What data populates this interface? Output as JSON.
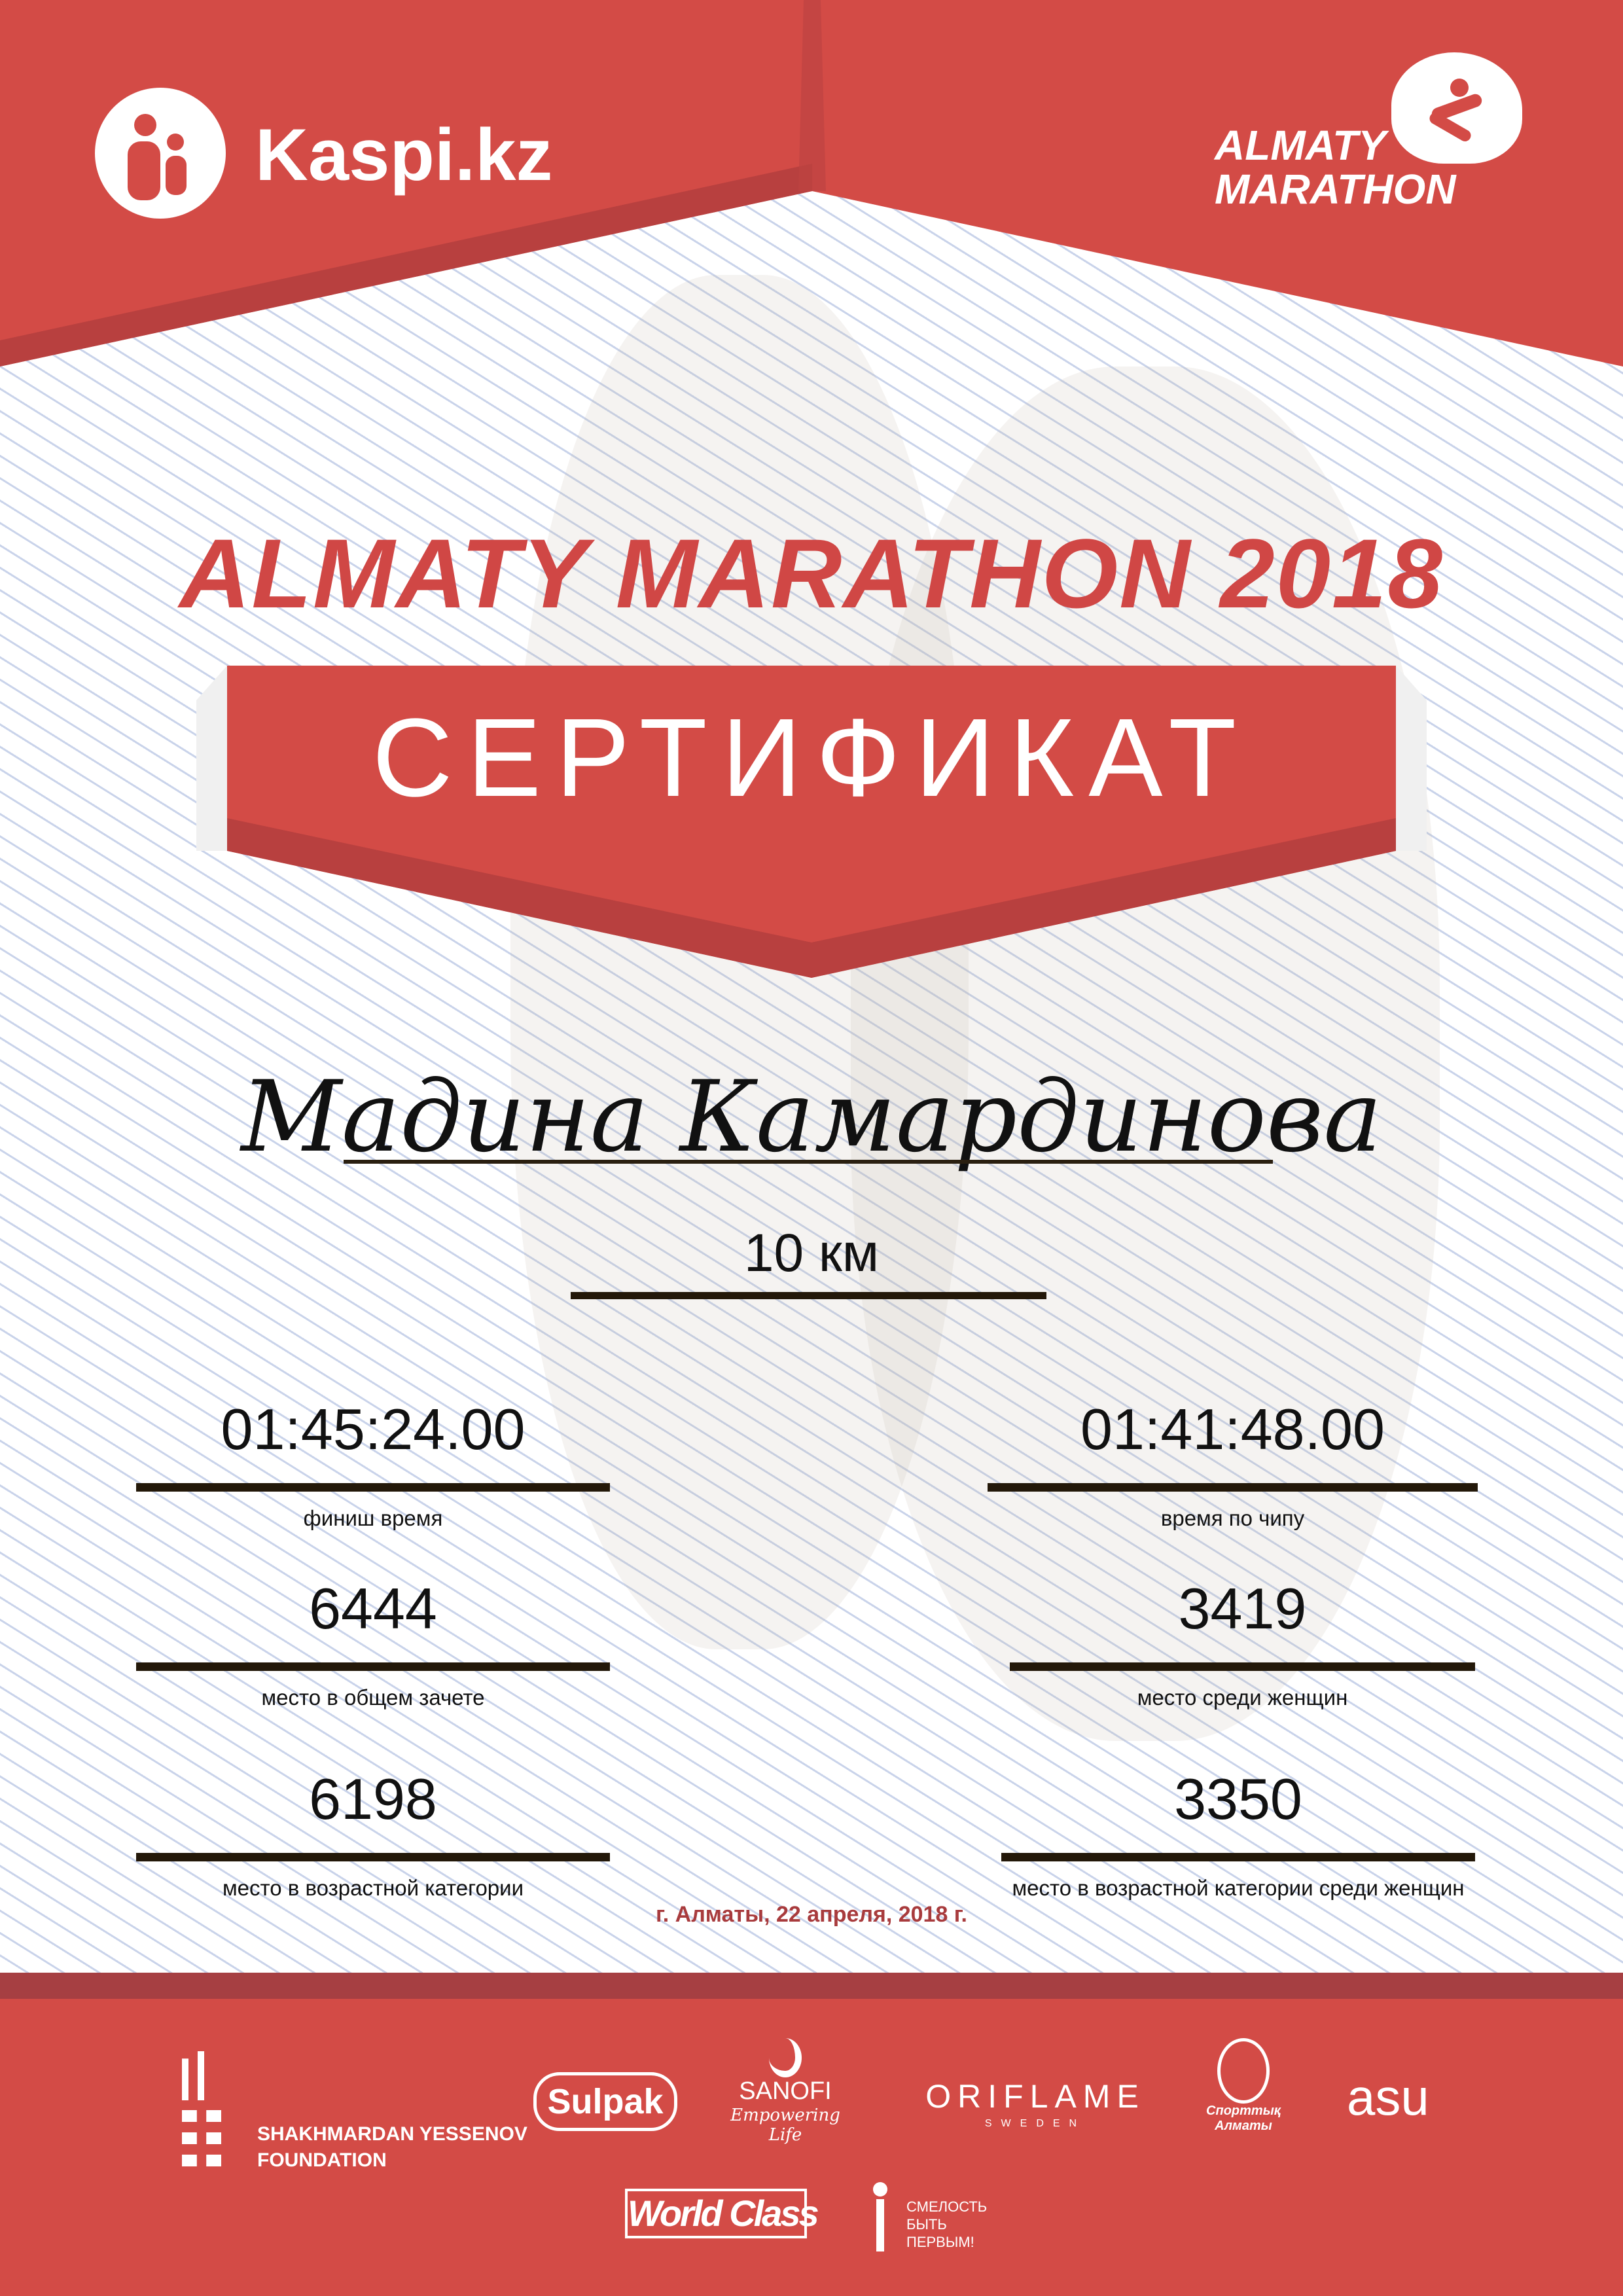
{
  "header": {
    "sponsor_logo": "Kaspi.kz",
    "event_logo_line1": "ALMATY",
    "event_logo_line2": "MARATHON"
  },
  "title": "ALMATY MARATHON 2018",
  "certificate_label": "СЕРТИФИКАТ",
  "participant_name": "Мадина Камардинова",
  "distance": "10 км",
  "stats": [
    {
      "value": "01:45:24.00",
      "label": "финиш время"
    },
    {
      "value": "01:41:48.00",
      "label": "время по чипу"
    },
    {
      "value": "6444",
      "label": "место в общем зачете"
    },
    {
      "value": "3419",
      "label": "место среди женщин"
    },
    {
      "value": "6198",
      "label": "место в возрастной категории"
    },
    {
      "value": "3350",
      "label": "место в возрастной категории среди женщин"
    }
  ],
  "date": "г. Алматы, 22 апреля, 2018 г.",
  "partners": {
    "yessenov_line1": "SHAKHMARDAN YESSENOV",
    "yessenov_line2": "FOUNDATION",
    "sulpak": "Sulpak",
    "sanofi": "SANOFI",
    "sanofi_tagline": "Empowering Life",
    "oriflame": "ORIFLAME",
    "oriflame_sub": "SWEDEN",
    "sport_almaty_line1": "Спорттық",
    "sport_almaty_line2": "Алматы",
    "asu": "asu",
    "worldclass": "World Class",
    "fund_line1": "СМЕЛОСТЬ",
    "fund_line2": "БЫТЬ",
    "fund_line3": "ПЕРВЫМ!"
  },
  "colors": {
    "primary_red": "#d34b46",
    "dark_red": "#a63f42",
    "date_red": "#a83b3d",
    "line_blue": "#c9d3ea"
  }
}
